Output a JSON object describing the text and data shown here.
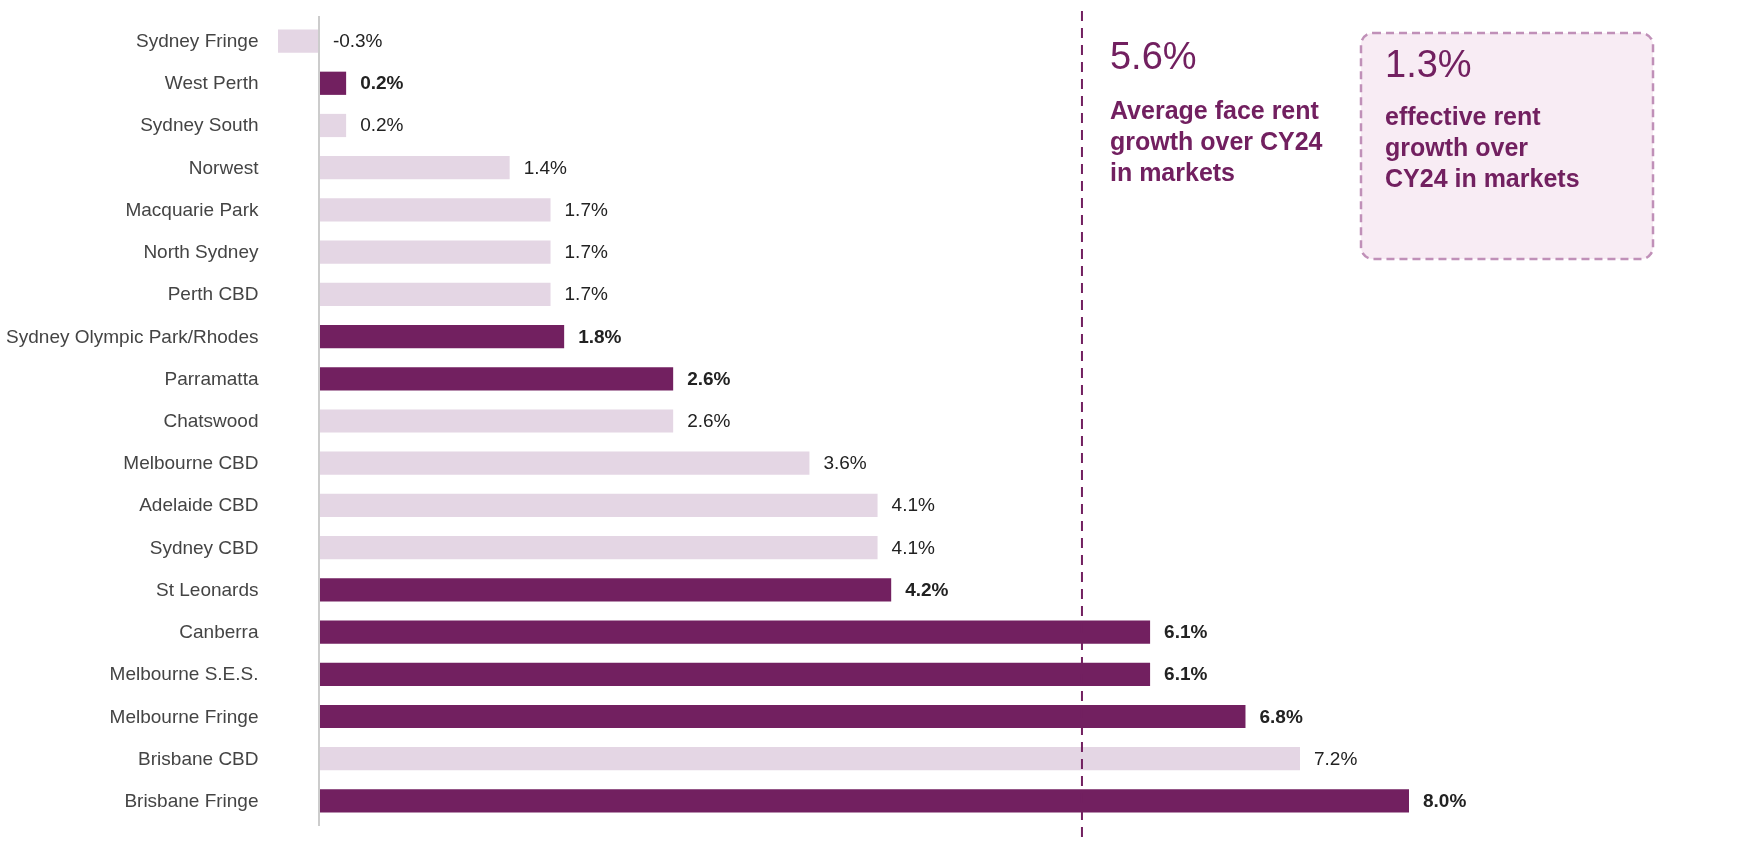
{
  "chart_data": {
    "type": "bar",
    "orientation": "horizontal",
    "categories": [
      "Sydney Fringe",
      "West Perth",
      "Sydney South",
      "Norwest",
      "Macquarie Park",
      "North Sydney",
      "Perth CBD",
      "Sydney Olympic Park/Rhodes",
      "Parramatta",
      "Chatswood",
      "Melbourne CBD",
      "Adelaide CBD",
      "Sydney CBD",
      "St Leonards",
      "Canberra",
      "Melbourne S.E.S.",
      "Melbourne Fringe",
      "Brisbane CBD",
      "Brisbane Fringe"
    ],
    "values": [
      -0.3,
      0.2,
      0.2,
      1.4,
      1.7,
      1.7,
      1.7,
      1.8,
      2.6,
      2.6,
      3.6,
      4.1,
      4.1,
      4.2,
      6.1,
      6.1,
      6.8,
      7.2,
      8.0
    ],
    "value_labels": [
      "-0.3%",
      "0.2%",
      "0.2%",
      "1.4%",
      "1.7%",
      "1.7%",
      "1.7%",
      "1.8%",
      "2.6%",
      "2.6%",
      "3.6%",
      "4.1%",
      "4.1%",
      "4.2%",
      "6.1%",
      "6.1%",
      "6.8%",
      "7.2%",
      "8.0%"
    ],
    "colors": [
      "#e4d6e4",
      "#722060",
      "#e4d6e4",
      "#e4d6e4",
      "#e4d6e4",
      "#e4d6e4",
      "#e4d6e4",
      "#722060",
      "#722060",
      "#e4d6e4",
      "#e4d6e4",
      "#e4d6e4",
      "#e4d6e4",
      "#722060",
      "#722060",
      "#722060",
      "#722060",
      "#e4d6e4",
      "#722060"
    ],
    "ref_lines": [
      {
        "axis": "x",
        "value": 5.6,
        "label": "5.6%",
        "color": "#722060",
        "line_style": "dashed"
      }
    ],
    "annotations": [
      "Average face rent growth over CY24 in markets",
      "1.3%",
      "effective rent growth over CY24 in markets"
    ]
  }
}
